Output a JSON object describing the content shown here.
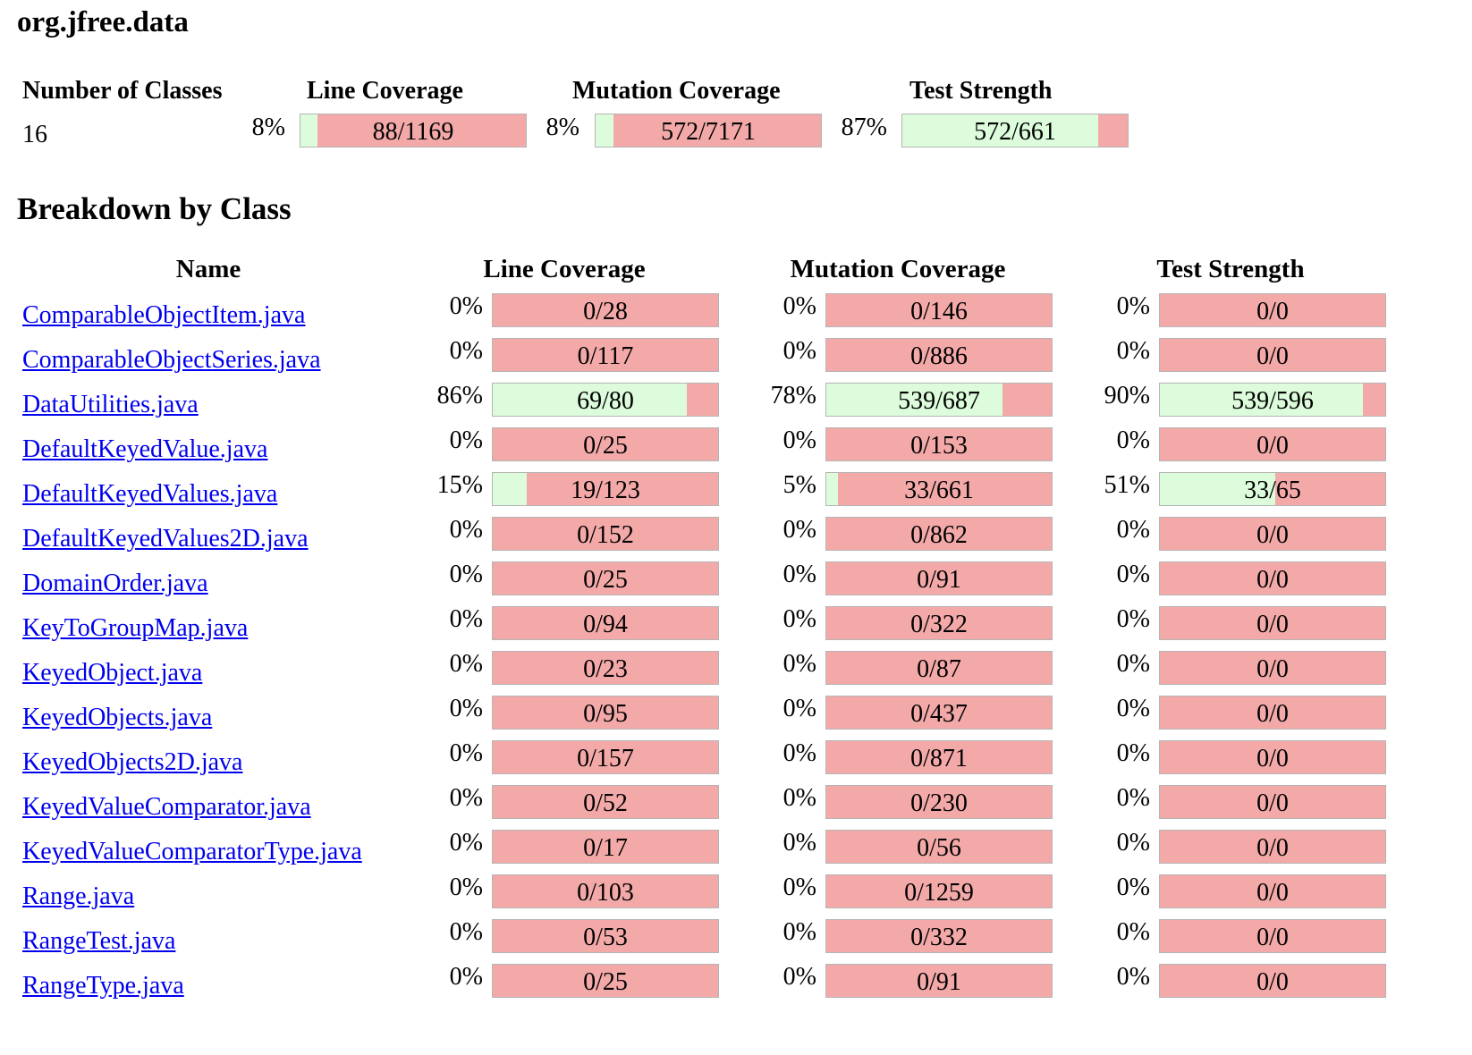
{
  "package": {
    "title": "org.jfree.data"
  },
  "summary": {
    "headers": {
      "classes": "Number of Classes",
      "line": "Line Coverage",
      "mutation": "Mutation Coverage",
      "strength": "Test Strength"
    },
    "class_count": "16",
    "line": {
      "percent": "8%",
      "ratio": "88/1169",
      "fraction": 0.075
    },
    "mutation": {
      "percent": "8%",
      "ratio": "572/7171",
      "fraction": 0.08
    },
    "strength": {
      "percent": "87%",
      "ratio": "572/661",
      "fraction": 0.87
    }
  },
  "breakdown": {
    "title": "Breakdown by Class",
    "headers": {
      "name": "Name",
      "line": "Line Coverage",
      "mutation": "Mutation Coverage",
      "strength": "Test Strength"
    },
    "rows": [
      {
        "name": "ComparableObjectItem.java",
        "line": {
          "percent": "0%",
          "ratio": "0/28",
          "fraction": 0
        },
        "mutation": {
          "percent": "0%",
          "ratio": "0/146",
          "fraction": 0
        },
        "strength": {
          "percent": "0%",
          "ratio": "0/0",
          "fraction": 0
        }
      },
      {
        "name": "ComparableObjectSeries.java",
        "line": {
          "percent": "0%",
          "ratio": "0/117",
          "fraction": 0
        },
        "mutation": {
          "percent": "0%",
          "ratio": "0/886",
          "fraction": 0
        },
        "strength": {
          "percent": "0%",
          "ratio": "0/0",
          "fraction": 0
        }
      },
      {
        "name": "DataUtilities.java",
        "line": {
          "percent": "86%",
          "ratio": "69/80",
          "fraction": 0.86
        },
        "mutation": {
          "percent": "78%",
          "ratio": "539/687",
          "fraction": 0.78
        },
        "strength": {
          "percent": "90%",
          "ratio": "539/596",
          "fraction": 0.9
        }
      },
      {
        "name": "DefaultKeyedValue.java",
        "line": {
          "percent": "0%",
          "ratio": "0/25",
          "fraction": 0
        },
        "mutation": {
          "percent": "0%",
          "ratio": "0/153",
          "fraction": 0
        },
        "strength": {
          "percent": "0%",
          "ratio": "0/0",
          "fraction": 0
        }
      },
      {
        "name": "DefaultKeyedValues.java",
        "line": {
          "percent": "15%",
          "ratio": "19/123",
          "fraction": 0.15
        },
        "mutation": {
          "percent": "5%",
          "ratio": "33/661",
          "fraction": 0.05
        },
        "strength": {
          "percent": "51%",
          "ratio": "33/65",
          "fraction": 0.51
        }
      },
      {
        "name": "DefaultKeyedValues2D.java",
        "line": {
          "percent": "0%",
          "ratio": "0/152",
          "fraction": 0
        },
        "mutation": {
          "percent": "0%",
          "ratio": "0/862",
          "fraction": 0
        },
        "strength": {
          "percent": "0%",
          "ratio": "0/0",
          "fraction": 0
        }
      },
      {
        "name": "DomainOrder.java",
        "line": {
          "percent": "0%",
          "ratio": "0/25",
          "fraction": 0
        },
        "mutation": {
          "percent": "0%",
          "ratio": "0/91",
          "fraction": 0
        },
        "strength": {
          "percent": "0%",
          "ratio": "0/0",
          "fraction": 0
        }
      },
      {
        "name": "KeyToGroupMap.java",
        "line": {
          "percent": "0%",
          "ratio": "0/94",
          "fraction": 0
        },
        "mutation": {
          "percent": "0%",
          "ratio": "0/322",
          "fraction": 0
        },
        "strength": {
          "percent": "0%",
          "ratio": "0/0",
          "fraction": 0
        }
      },
      {
        "name": "KeyedObject.java",
        "line": {
          "percent": "0%",
          "ratio": "0/23",
          "fraction": 0
        },
        "mutation": {
          "percent": "0%",
          "ratio": "0/87",
          "fraction": 0
        },
        "strength": {
          "percent": "0%",
          "ratio": "0/0",
          "fraction": 0
        }
      },
      {
        "name": "KeyedObjects.java",
        "line": {
          "percent": "0%",
          "ratio": "0/95",
          "fraction": 0
        },
        "mutation": {
          "percent": "0%",
          "ratio": "0/437",
          "fraction": 0
        },
        "strength": {
          "percent": "0%",
          "ratio": "0/0",
          "fraction": 0
        }
      },
      {
        "name": "KeyedObjects2D.java",
        "line": {
          "percent": "0%",
          "ratio": "0/157",
          "fraction": 0
        },
        "mutation": {
          "percent": "0%",
          "ratio": "0/871",
          "fraction": 0
        },
        "strength": {
          "percent": "0%",
          "ratio": "0/0",
          "fraction": 0
        }
      },
      {
        "name": "KeyedValueComparator.java",
        "line": {
          "percent": "0%",
          "ratio": "0/52",
          "fraction": 0
        },
        "mutation": {
          "percent": "0%",
          "ratio": "0/230",
          "fraction": 0
        },
        "strength": {
          "percent": "0%",
          "ratio": "0/0",
          "fraction": 0
        }
      },
      {
        "name": "KeyedValueComparatorType.java",
        "line": {
          "percent": "0%",
          "ratio": "0/17",
          "fraction": 0
        },
        "mutation": {
          "percent": "0%",
          "ratio": "0/56",
          "fraction": 0
        },
        "strength": {
          "percent": "0%",
          "ratio": "0/0",
          "fraction": 0
        }
      },
      {
        "name": "Range.java",
        "line": {
          "percent": "0%",
          "ratio": "0/103",
          "fraction": 0
        },
        "mutation": {
          "percent": "0%",
          "ratio": "0/1259",
          "fraction": 0
        },
        "strength": {
          "percent": "0%",
          "ratio": "0/0",
          "fraction": 0
        }
      },
      {
        "name": "RangeTest.java",
        "line": {
          "percent": "0%",
          "ratio": "0/53",
          "fraction": 0
        },
        "mutation": {
          "percent": "0%",
          "ratio": "0/332",
          "fraction": 0
        },
        "strength": {
          "percent": "0%",
          "ratio": "0/0",
          "fraction": 0
        }
      },
      {
        "name": "RangeType.java",
        "line": {
          "percent": "0%",
          "ratio": "0/25",
          "fraction": 0
        },
        "mutation": {
          "percent": "0%",
          "ratio": "0/91",
          "fraction": 0
        },
        "strength": {
          "percent": "0%",
          "ratio": "0/0",
          "fraction": 0
        }
      }
    ]
  },
  "colors": {
    "covered": "#dcfcdc",
    "uncovered": "#f4a9a9",
    "link": "#0000ee"
  }
}
